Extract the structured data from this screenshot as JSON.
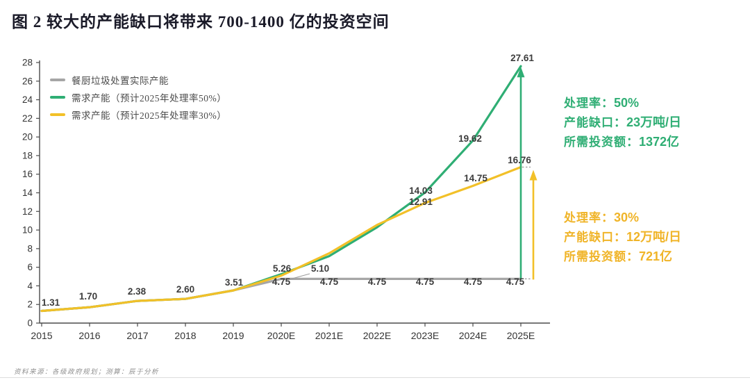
{
  "title": "图 2 较大的产能缺口将带来 700-1400 亿的投资空间",
  "footer": {
    "source": "资料来源：各级政府规划；测算：辰于分析"
  },
  "colors": {
    "green": "#2FAE74",
    "yellow": "#F2C028",
    "gray": "#A6A6A6",
    "label_text": "#3c3c3c",
    "axis_text": "#333333",
    "axis_line": "#4a4a4a",
    "leader": "#9a9a9a"
  },
  "legend": {
    "items": [
      {
        "label": "餐厨垃圾处置实际产能",
        "color": "#A6A6A6"
      },
      {
        "label": "需求产能（预计2025年处理率50%）",
        "color": "#2FAE74"
      },
      {
        "label": "需求产能（预计2025年处理率30%）",
        "color": "#F2C028"
      }
    ]
  },
  "annotations": {
    "green": {
      "color": "#2FAE74",
      "lines": [
        {
          "label": "处理率：",
          "value": "50%"
        },
        {
          "label": "产能缺口：",
          "value": "23万吨/日"
        },
        {
          "label": "所需投资额：",
          "value": "1372亿"
        }
      ]
    },
    "yellow": {
      "color": "#F0B428",
      "lines": [
        {
          "label": "处理率：",
          "value": "30%"
        },
        {
          "label": "产能缺口：",
          "value": "12万吨/日"
        },
        {
          "label": "所需投资额：",
          "value": "721亿"
        }
      ]
    }
  },
  "chart_data": {
    "type": "line",
    "title": "",
    "xlabel": "",
    "ylabel": "",
    "ylim": [
      0,
      28
    ],
    "ytick_step": 2,
    "grid": false,
    "legend_position": "top-left",
    "categories": [
      "2015",
      "2016",
      "2017",
      "2018",
      "2019",
      "2020E",
      "2021E",
      "2022E",
      "2023E",
      "2024E",
      "2025E"
    ],
    "series": [
      {
        "name": "餐厨垃圾处置实际产能",
        "color": "#A6A6A6",
        "values": [
          1.31,
          1.7,
          2.38,
          2.6,
          3.51,
          4.75,
          4.75,
          4.75,
          4.75,
          4.75,
          4.75
        ],
        "labels": [
          null,
          null,
          null,
          null,
          null,
          "4.75",
          "4.75",
          "4.75",
          "4.75",
          "4.75",
          "4.75"
        ]
      },
      {
        "name": "需求产能（预计2025年处理率50%）",
        "color": "#2FAE74",
        "values": [
          1.31,
          1.7,
          2.38,
          2.6,
          3.51,
          5.26,
          7.2,
          10.3,
          14.03,
          19.62,
          27.61
        ],
        "labels": [
          "1.31",
          "1.70",
          "2.38",
          "2.60",
          "3.51",
          "5.26",
          null,
          null,
          "14.03",
          "19.62",
          "27.61"
        ]
      },
      {
        "name": "需求产能（预计2025年处理率30%）",
        "color": "#F2C028",
        "values": [
          1.31,
          1.7,
          2.38,
          2.6,
          3.51,
          5.1,
          7.5,
          10.55,
          12.91,
          14.75,
          16.76
        ],
        "labels": [
          null,
          null,
          null,
          null,
          null,
          "5.10",
          null,
          null,
          "12.91",
          "14.75",
          "16.76"
        ]
      }
    ],
    "gap_arrows": [
      {
        "x_category": "2025E",
        "from_value": 4.75,
        "to_value": 27.61,
        "color": "#2FAE74"
      },
      {
        "x_category": "2025E",
        "from_value": 4.75,
        "to_value": 16.76,
        "color": "#F2C028"
      }
    ]
  }
}
